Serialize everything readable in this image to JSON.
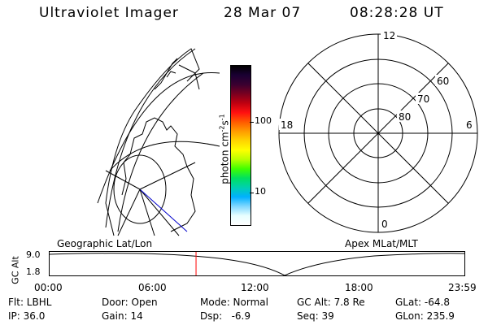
{
  "header": {
    "title": "Ultraviolet Imager",
    "date": "28 Mar 07",
    "time": "08:28:28 UT"
  },
  "colorbar": {
    "label": "photon cm-2s-1",
    "label_main": "photon cm",
    "label_sup1": "-2",
    "label_mid": "s",
    "label_sup2": "-1",
    "tick_100": "100",
    "tick_10": "10",
    "colors": [
      "#000000",
      "#1a0033",
      "#3a0030",
      "#7a0020",
      "#c00010",
      "#ff1010",
      "#ff5a00",
      "#ff9c00",
      "#ffd400",
      "#ffff00",
      "#b8ff00",
      "#40ff00",
      "#00e060",
      "#00d0b0",
      "#00b0ff",
      "#80d8ff",
      "#e8ffff",
      "#ffffff"
    ]
  },
  "polar": {
    "mlt_12": "12",
    "mlt_18": "18",
    "mlt_6": "6",
    "mlt_0": "0",
    "lat_60": "60",
    "lat_70": "70",
    "lat_80": "80"
  },
  "labels": {
    "geo": "Geographic Lat/Lon",
    "apex": "Apex MLat/MLT"
  },
  "altitude_plot": {
    "axis_label": "GC Alt",
    "y_max": "9.0",
    "y_min": "1.8",
    "x_ticks": [
      "00:00",
      "06:00",
      "12:00",
      "18:00",
      "23:59"
    ],
    "current_time_fraction": 0.353
  },
  "info": {
    "filter": "Flt: LBHL",
    "ip": "IP: 36.0",
    "door": "Door: Open",
    "gain": "Gain: 14",
    "mode": "Mode: Normal",
    "dsp": "Dsp:   -6.9",
    "gc_alt": "GC Alt: 7.8 Re",
    "seq": "Seq: 39",
    "glat": "GLat: -64.8",
    "glon": "GLon: 235.9"
  }
}
